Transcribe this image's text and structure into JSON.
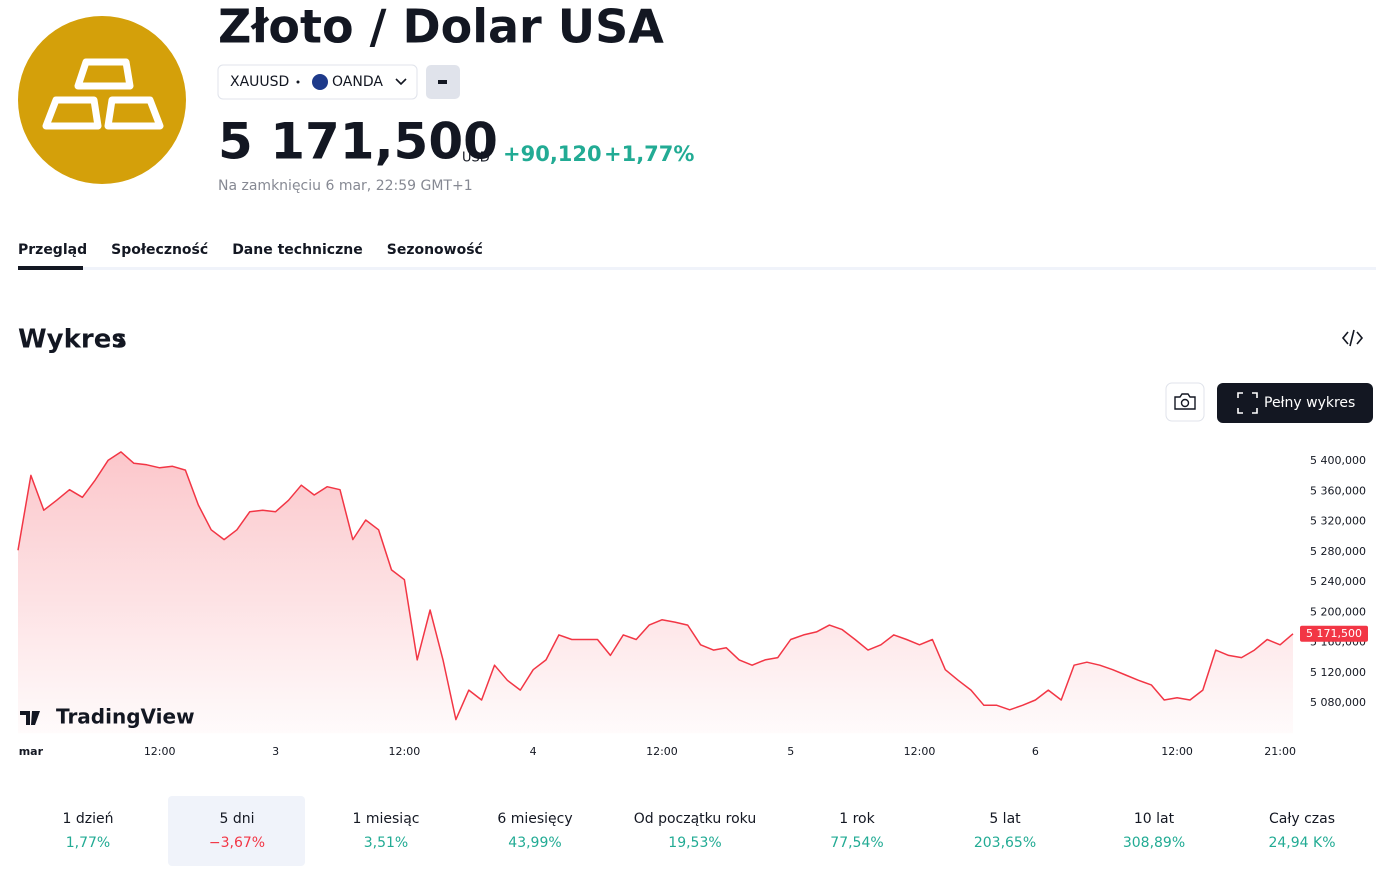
{
  "header": {
    "title": "Złoto / Dolar USA",
    "symbol": "XAUUSD",
    "exchange": "OANDA",
    "price": "5 171,500",
    "currency": "USD",
    "change": "+90,120",
    "change_percent": "+1,77%",
    "status": "Na zamknięciu 6 mar, 22:59 GMT+1"
  },
  "tabs": [
    "Przegląd",
    "Społeczność",
    "Dane techniczne",
    "Sezonowość"
  ],
  "section_title": "Wykres",
  "full_chart_button": "Pełny wykres",
  "watermark": "TradingView",
  "chart_data": {
    "type": "area",
    "color": "#f23645",
    "categories": [
      null,
      "mar",
      null,
      null,
      null,
      null,
      null,
      null,
      null,
      null,
      null,
      "12:00",
      null,
      null,
      null,
      null,
      null,
      null,
      null,
      null,
      "3",
      null,
      null,
      null,
      null,
      null,
      null,
      null,
      null,
      null,
      "12:00",
      null,
      null,
      null,
      null,
      null,
      null,
      null,
      null,
      null,
      "4",
      null,
      null,
      null,
      null,
      null,
      null,
      null,
      null,
      null,
      "12:00",
      null,
      null,
      null,
      null,
      null,
      null,
      null,
      null,
      null,
      "5",
      null,
      null,
      null,
      null,
      null,
      null,
      null,
      null,
      null,
      "12:00",
      null,
      null,
      null,
      null,
      null,
      null,
      null,
      null,
      "6",
      null,
      null,
      null,
      null,
      null,
      null,
      null,
      null,
      null,
      null,
      "12:00",
      null,
      null,
      null,
      null,
      null,
      null,
      null,
      "21:00",
      null
    ],
    "values": [
      5282000,
      5381000,
      5335000,
      5348000,
      5362000,
      5352000,
      5375000,
      5401000,
      5412000,
      5397000,
      5395000,
      5391000,
      5393000,
      5388000,
      5342000,
      5309000,
      5296000,
      5309000,
      5333000,
      5335000,
      5333000,
      5348000,
      5368000,
      5355000,
      5366000,
      5362000,
      5296000,
      5322000,
      5309000,
      5256000,
      5243000,
      5137000,
      5203000,
      5137000,
      5058000,
      5097000,
      5084000,
      5130000,
      5110000,
      5097000,
      5124000,
      5137000,
      5170000,
      5164000,
      5164000,
      5164000,
      5143000,
      5170000,
      5164000,
      5183000,
      5190000,
      5187000,
      5183000,
      5157000,
      5150000,
      5153000,
      5137000,
      5130000,
      5137000,
      5140000,
      5164000,
      5170000,
      5174000,
      5183000,
      5177000,
      5164000,
      5150000,
      5157000,
      5170000,
      5164000,
      5157000,
      5164000,
      5124000,
      5110000,
      5097000,
      5077000,
      5077000,
      5071000,
      5077000,
      5084000,
      5097000,
      5084000,
      5130000,
      5134000,
      5130000,
      5124000,
      5117000,
      5110000,
      5104000,
      5084000,
      5087000,
      5084000,
      5097000,
      5150000,
      5143000,
      5140000,
      5150000,
      5164000,
      5157000,
      5171500
    ],
    "value_labels": [
      null,
      null,
      null,
      null,
      null,
      null,
      null,
      null,
      null,
      null,
      null,
      null,
      null,
      null,
      null,
      null,
      null,
      null,
      null,
      null,
      null,
      null,
      null,
      null,
      null,
      null,
      null,
      null,
      null,
      null,
      null,
      null,
      null,
      null,
      null,
      null,
      null,
      null,
      null,
      null,
      null,
      null,
      null,
      null,
      null,
      null,
      null,
      null,
      null,
      null,
      null,
      null,
      null,
      null,
      null,
      null,
      null,
      null,
      null,
      null,
      null,
      null,
      null,
      null,
      null,
      null,
      null,
      null,
      null,
      null,
      null,
      null,
      null,
      null,
      null,
      null,
      null,
      null,
      null,
      null,
      null,
      null,
      null,
      null,
      null,
      null,
      null,
      null,
      null,
      null,
      null,
      null,
      null,
      null,
      null,
      null,
      null,
      null,
      null,
      "5 171,500"
    ],
    "ylim": [
      5040000,
      5420000
    ],
    "yticks": [
      {
        "value": 5080000,
        "label": "5 080,000"
      },
      {
        "value": 5120000,
        "label": "5 120,000"
      },
      {
        "value": 5160000,
        "label": "5 160,000"
      },
      {
        "value": 5200000,
        "label": "5 200,000"
      },
      {
        "value": 5240000,
        "label": "5 240,000"
      },
      {
        "value": 5280000,
        "label": "5 280,000"
      },
      {
        "value": 5320000,
        "label": "5 320,000"
      },
      {
        "value": 5360000,
        "label": "5 360,000"
      },
      {
        "value": 5400000,
        "label": "5 400,000"
      }
    ]
  },
  "periods": [
    {
      "label": "1 dzień",
      "value": "1,77%"
    },
    {
      "label": "5 dni",
      "value": "−3,67%"
    },
    {
      "label": "1 miesiąc",
      "value": "3,51%"
    },
    {
      "label": "6 miesięcy",
      "value": "43,99%"
    },
    {
      "label": "Od początku roku",
      "value": "19,53%"
    },
    {
      "label": "1 rok",
      "value": "77,54%"
    },
    {
      "label": "5 lat",
      "value": "203,65%"
    },
    {
      "label": "10 lat",
      "value": "308,89%"
    },
    {
      "label": "Cały czas",
      "value": "24,94 K%"
    }
  ]
}
